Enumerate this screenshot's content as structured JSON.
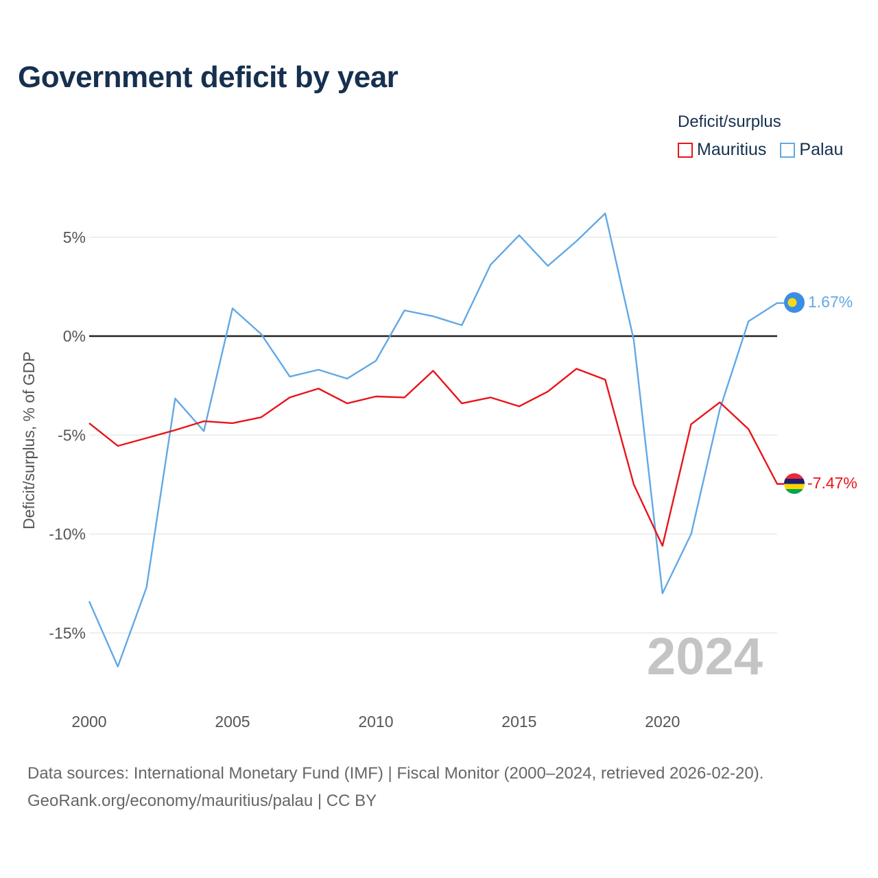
{
  "title": "Government deficit by year",
  "legend": {
    "title": "Deficit/surplus",
    "items": [
      {
        "name": "Mauritius",
        "color": "#e8141a"
      },
      {
        "name": "Palau",
        "color": "#62a8e5"
      }
    ]
  },
  "chart_data": {
    "type": "line",
    "title": "Government deficit by year",
    "xlabel": "",
    "ylabel": "Deficit/surplus, % of GDP",
    "x": [
      2000,
      2001,
      2002,
      2003,
      2004,
      2005,
      2006,
      2007,
      2008,
      2009,
      2010,
      2011,
      2012,
      2013,
      2014,
      2015,
      2016,
      2017,
      2018,
      2019,
      2020,
      2021,
      2022,
      2023,
      2024
    ],
    "xticks": [
      2000,
      2005,
      2010,
      2015,
      2020
    ],
    "xtick_labels": [
      "2000",
      "2005",
      "2010",
      "2015",
      "2020"
    ],
    "yticks": [
      5,
      0,
      -5,
      -10,
      -15
    ],
    "ytick_labels": [
      "5%",
      "0%",
      "-5%",
      "-10%",
      "-15%"
    ],
    "xlim": [
      2000,
      2024
    ],
    "ylim": [
      -18,
      8
    ],
    "grid": true,
    "zero_line": true,
    "year_watermark": "2024",
    "series": [
      {
        "name": "Mauritius",
        "color": "#e8141a",
        "end_label": "-7.47%",
        "flag": "mauritius-flag",
        "values": [
          -4.4,
          -5.55,
          -5.15,
          -4.75,
          -4.3,
          -4.4,
          -4.1,
          -3.1,
          -2.65,
          -3.4,
          -3.05,
          -3.1,
          -1.75,
          -3.4,
          -3.1,
          -3.55,
          -2.8,
          -1.65,
          -2.2,
          -7.5,
          -10.6,
          -4.45,
          -3.35,
          -4.7,
          -7.47
        ]
      },
      {
        "name": "Palau",
        "color": "#62a8e5",
        "end_label": "1.67%",
        "flag": "palau-flag",
        "values": [
          -13.4,
          -16.7,
          -12.7,
          -3.15,
          -4.8,
          1.4,
          0.1,
          -2.05,
          -1.7,
          -2.15,
          -1.25,
          1.3,
          1.0,
          0.55,
          3.6,
          5.1,
          3.55,
          4.8,
          6.2,
          -0.2,
          -13.0,
          -10.0,
          -3.7,
          0.75,
          1.67
        ]
      }
    ]
  },
  "footer": {
    "line1": "Data sources: International Monetary Fund (IMF) | Fiscal Monitor (2000–2024, retrieved 2026-02-20).",
    "line2": "GeoRank.org/economy/mauritius/palau | CC BY"
  }
}
